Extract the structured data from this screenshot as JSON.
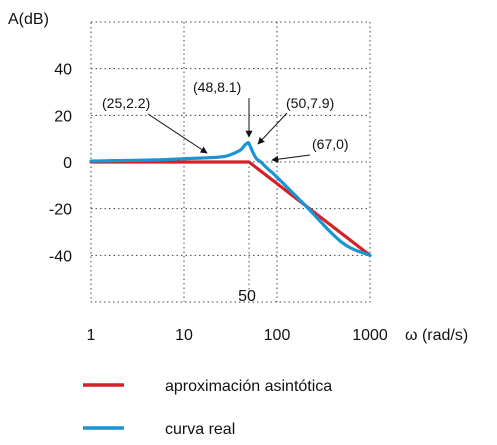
{
  "chart_data": {
    "type": "line",
    "title": "",
    "xlabel": "ω (rad/s)",
    "ylabel": "A(dB)",
    "x_scale": "log",
    "xlim": [
      1,
      1000
    ],
    "ylim": [
      -60,
      60
    ],
    "grid": true,
    "x_ticks": [
      1,
      10,
      100,
      1000
    ],
    "x_tick_labels": [
      "1",
      "10",
      "100",
      "1000"
    ],
    "y_ticks": [
      40,
      20,
      0,
      -20,
      -40
    ],
    "y_tick_labels": [
      "40",
      "20",
      "0",
      "-20",
      "-40"
    ],
    "marker_label": "50",
    "marker_x": 50,
    "series": [
      {
        "name": "aproximación asintótica",
        "color": "#d42027",
        "x": [
          1,
          50,
          1000
        ],
        "y": [
          0,
          0,
          -40
        ]
      },
      {
        "name": "curva real",
        "color": "#1a94d4",
        "x": [
          1,
          5,
          10,
          20,
          25,
          30,
          40,
          45,
          48,
          50,
          55,
          60,
          67,
          80,
          100,
          200,
          500,
          1000
        ],
        "y": [
          0.4,
          0.9,
          1.4,
          1.9,
          2.2,
          2.8,
          5,
          7.2,
          8.1,
          7.9,
          4.2,
          1.5,
          0,
          -3,
          -6.5,
          -18.5,
          -34.5,
          -40
        ]
      }
    ],
    "annotations": [
      {
        "text": "(25,2.2)",
        "x": 25,
        "y": 2.2
      },
      {
        "text": "(48,8.1)",
        "x": 48,
        "y": 8.1
      },
      {
        "text": "(50,7.9)",
        "x": 50,
        "y": 7.9
      },
      {
        "text": "(67,0)",
        "x": 67,
        "y": 0
      }
    ],
    "legend": {
      "placement": "bottom",
      "entries": [
        "aproximación asintótica",
        "curva real"
      ]
    }
  }
}
